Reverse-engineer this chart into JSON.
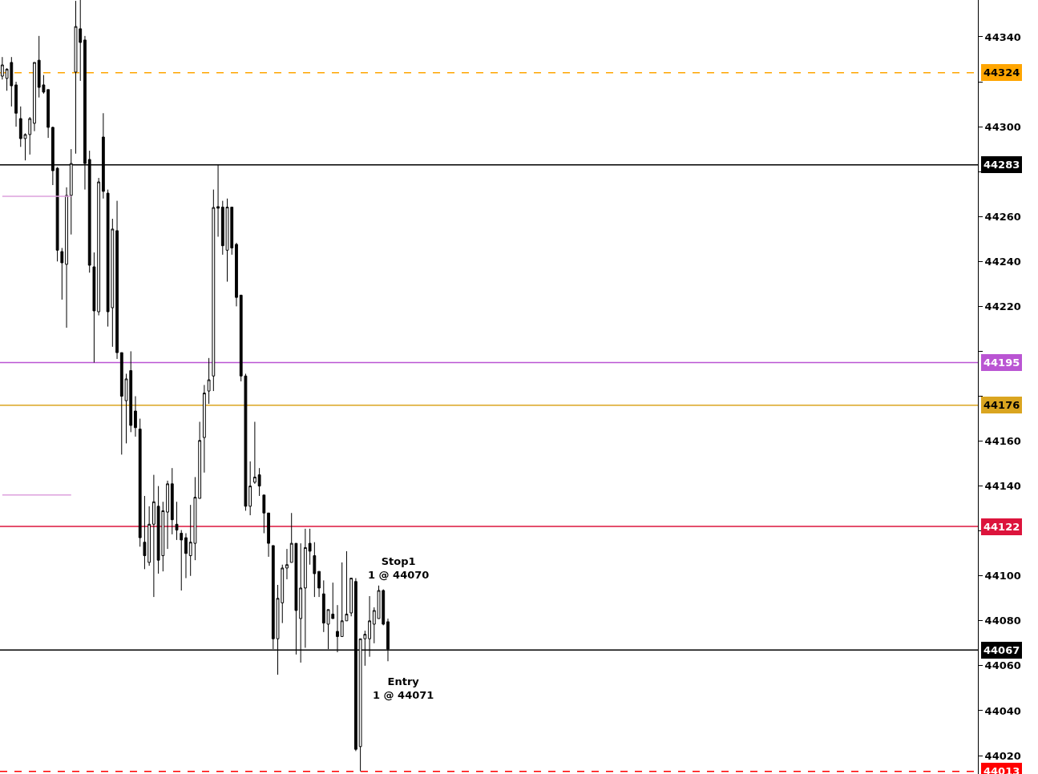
{
  "chart_data": {
    "type": "candlestick",
    "color": "#000000",
    "categories": [
      null,
      null,
      null,
      null,
      null,
      null,
      null,
      null,
      null,
      null,
      null,
      null,
      null,
      null,
      null,
      null,
      null,
      null,
      null,
      null,
      null,
      null,
      null,
      null,
      null,
      null,
      null,
      null,
      null,
      null,
      null,
      null,
      null,
      null,
      null,
      null,
      null,
      null,
      null,
      null,
      null,
      null,
      null,
      null,
      null,
      null,
      null,
      null,
      null,
      null,
      null,
      null,
      null,
      null,
      null,
      null,
      null,
      null,
      null,
      null,
      null,
      null,
      null,
      null,
      null,
      null,
      null,
      null,
      null,
      null,
      null,
      null,
      null,
      null,
      null,
      null,
      null,
      null,
      null,
      null,
      null,
      null,
      null,
      null,
      null,
      null,
      null,
      null,
      null,
      null,
      null,
      null,
      null,
      null,
      null,
      null,
      null,
      null,
      null,
      null,
      null,
      null,
      null,
      null,
      null,
      null,
      null,
      null,
      null,
      null,
      null,
      null,
      null,
      null,
      null,
      null,
      null,
      null,
      null,
      null,
      null,
      null,
      null,
      null,
      null,
      null,
      null,
      null,
      null,
      null,
      null,
      null,
      null,
      null,
      null,
      null,
      null,
      null,
      null,
      null,
      null,
      null,
      null,
      null,
      null,
      null,
      null,
      null,
      null,
      null,
      null,
      null,
      null,
      null,
      null,
      null,
      null,
      null,
      null,
      null,
      null,
      null,
      null,
      null,
      null,
      null,
      null,
      null,
      null,
      null,
      null,
      null,
      null,
      null,
      null,
      null,
      null,
      null,
      null,
      null,
      null,
      null,
      null,
      null,
      null,
      null,
      null,
      null,
      null,
      null,
      null,
      null,
      null,
      null,
      null,
      null,
      null,
      null,
      null,
      null,
      null,
      null,
      null,
      null,
      null,
      null,
      null,
      null,
      null,
      null,
      null,
      null,
      null
    ],
    "ohlc": [
      [
        44322.5,
        44331,
        44321,
        44327.5
      ],
      [
        44321.5,
        44326,
        44316,
        44325.6
      ],
      [
        44328.6,
        44331,
        44309,
        44318.2
      ],
      [
        44318.6,
        44320,
        44300,
        44306
      ],
      [
        44303.6,
        44309,
        44291,
        44294.7
      ],
      [
        44294.7,
        44297,
        44285,
        44296.5
      ],
      [
        44296.5,
        44304.3,
        44287.6,
        44303.6
      ],
      [
        44301.5,
        44328.6,
        44298,
        44328.6
      ],
      [
        44329.6,
        44340.4,
        44313,
        44317.5
      ],
      [
        44318.6,
        44323,
        44314.7,
        44315.4
      ],
      [
        44316.5,
        44316.5,
        44295,
        44299.7
      ],
      [
        44299.7,
        44300,
        44274,
        44280.4
      ],
      [
        44281.5,
        44282,
        44240,
        44245
      ],
      [
        44244.4,
        44246,
        44223,
        44239.4
      ],
      [
        44238.7,
        44273,
        44210.5,
        44269.4
      ],
      [
        44269.4,
        44290,
        44252,
        44283.6
      ],
      [
        44324.3,
        44356,
        44288,
        44344.6
      ],
      [
        44343.6,
        44356.4,
        44320.4,
        44337.5
      ],
      [
        44338.6,
        44340.4,
        44272,
        44283.6
      ],
      [
        44285.4,
        44289.3,
        44235,
        44238.3
      ],
      [
        44237.6,
        44244,
        44195,
        44218
      ],
      [
        44217.6,
        44277.2,
        44216,
        44275.4
      ],
      [
        44295.4,
        44306,
        44268,
        44271.2
      ],
      [
        44270.4,
        44272,
        44211,
        44217.6
      ],
      [
        44219.4,
        44259,
        44202,
        44254.4
      ],
      [
        44253.7,
        44267,
        44196.6,
        44199.4
      ],
      [
        44199.4,
        44199.4,
        44154,
        44180
      ],
      [
        44178,
        44190,
        44159,
        44187.7
      ],
      [
        44191.4,
        44200,
        44164,
        44167
      ],
      [
        44173.4,
        44180,
        44162,
        44166
      ],
      [
        44165.4,
        44170,
        44113,
        44117
      ],
      [
        44115,
        44135.6,
        44103,
        44109
      ],
      [
        44106,
        44131,
        44104.5,
        44123
      ],
      [
        44123,
        44145,
        44090.6,
        44133
      ],
      [
        44131,
        44140,
        44101,
        44107
      ],
      [
        44109,
        44133,
        44102,
        44129
      ],
      [
        44128.4,
        44142.4,
        44112,
        44141
      ],
      [
        44141,
        44148,
        44118.5,
        44125
      ],
      [
        44123,
        44133,
        44116,
        44120.4
      ],
      [
        44119,
        44120.4,
        44093.5,
        44116
      ],
      [
        44117,
        44119,
        44099,
        44110
      ],
      [
        44109,
        44131.6,
        44100,
        44115
      ],
      [
        44114.5,
        44144,
        44107,
        44135
      ],
      [
        44134.5,
        44168.6,
        44134.5,
        44160.3
      ],
      [
        44161.6,
        44185,
        44146,
        44181.4
      ],
      [
        44182.3,
        44197,
        44176.6,
        44187.3
      ],
      [
        44189,
        44272,
        44182.3,
        44264
      ],
      [
        44264.4,
        44283,
        44251,
        44263.7
      ],
      [
        44264.2,
        44267,
        44243,
        44247
      ],
      [
        44245,
        44268,
        44231,
        44264.2
      ],
      [
        44264.2,
        44264.2,
        44243,
        44246
      ],
      [
        44247.6,
        44248.3,
        44220,
        44224
      ],
      [
        44225,
        44225,
        44186.6,
        44189
      ],
      [
        44189,
        44190,
        44129,
        44131
      ],
      [
        44131,
        44151,
        44127,
        44140
      ],
      [
        44141.7,
        44168.6,
        44141,
        44144
      ],
      [
        44145,
        44148,
        44135.6,
        44140
      ],
      [
        44136,
        44136,
        44119,
        44128
      ],
      [
        44128,
        44128,
        44108.5,
        44114.5
      ],
      [
        44113.5,
        44113.5,
        44067.4,
        44072
      ],
      [
        44072,
        44096,
        44056,
        44090
      ],
      [
        44088,
        44105,
        44079,
        44103.5
      ],
      [
        44103.5,
        44112,
        44098.5,
        44105
      ],
      [
        44106,
        44128,
        44106,
        44114.5
      ],
      [
        44114.5,
        44114.5,
        44065,
        44084.6
      ],
      [
        44081,
        44114.5,
        44061.4,
        44094.6
      ],
      [
        44094.6,
        44121,
        44068,
        44112.6
      ],
      [
        44114.5,
        44121,
        44105,
        44111
      ],
      [
        44109,
        44115,
        44090.6,
        44101
      ],
      [
        44102,
        44102,
        44090.6,
        44094.6
      ],
      [
        44092,
        44098,
        44075,
        44079
      ],
      [
        44078.5,
        44085,
        44067.4,
        44085
      ],
      [
        44083,
        44097,
        44081,
        44081
      ],
      [
        44075.3,
        44087,
        44066,
        44073
      ],
      [
        44073,
        44106,
        44073,
        44080
      ],
      [
        44080,
        44111,
        44080,
        44083
      ],
      [
        44083.5,
        44099,
        44082,
        44099
      ],
      [
        44097.5,
        44099,
        44022,
        44022.8
      ],
      [
        44024,
        44072,
        44013,
        44072
      ],
      [
        44072,
        44075.6,
        44060,
        44074
      ],
      [
        44072,
        44091,
        44064,
        44080
      ],
      [
        44078.5,
        44086,
        44070,
        44084.6
      ],
      [
        44081,
        44095.7,
        44081,
        44093.5
      ],
      [
        44093.5,
        44094,
        44078,
        44078.5
      ],
      [
        44079.6,
        44081,
        44062,
        44067.4
      ],
      null,
      null,
      null,
      null,
      null,
      null,
      null,
      null,
      null,
      null,
      null,
      null,
      null,
      null,
      null,
      null,
      null,
      null,
      null,
      null,
      null,
      null,
      null,
      null,
      null,
      null,
      null,
      null,
      null,
      null,
      null,
      null,
      null,
      null,
      null,
      null,
      null,
      null,
      null,
      null,
      null,
      null,
      null,
      null,
      null,
      null,
      null,
      null,
      null,
      null,
      null,
      null,
      null,
      null,
      null,
      null,
      null,
      null,
      null,
      null,
      null,
      null,
      null,
      null,
      null,
      null,
      null,
      null,
      null,
      null,
      null,
      null,
      null,
      null,
      null,
      null,
      null,
      null,
      null,
      null,
      null,
      null,
      null,
      null,
      null,
      null,
      null,
      null,
      null,
      null,
      null,
      null,
      null,
      null,
      null,
      null,
      null,
      null,
      null,
      null,
      null,
      null,
      null,
      null,
      null,
      null,
      null,
      null,
      null,
      null,
      null,
      null,
      null,
      null,
      null,
      null,
      null,
      null,
      null,
      null,
      null,
      null,
      null,
      null,
      null,
      null,
      null,
      null
    ],
    "series": [
      {
        "type": "line",
        "color": "#dda0dd",
        "values": [
          44269,
          44269,
          44269,
          44269,
          44269,
          44269,
          44269,
          44269,
          44269,
          44269,
          44269,
          44269,
          44269,
          44269,
          44269,
          44269,
          null,
          null,
          null,
          null,
          null,
          null,
          null,
          null,
          null,
          null,
          null,
          null,
          null,
          null,
          null,
          null,
          null,
          null,
          null,
          null,
          null,
          null,
          null,
          null,
          null,
          null,
          null,
          null,
          null,
          null,
          null,
          null,
          null,
          null,
          null,
          null,
          null,
          null,
          null,
          null,
          null,
          null,
          null,
          null,
          null,
          null,
          null,
          null,
          null,
          null,
          null,
          null,
          null,
          null,
          null,
          null,
          null,
          null,
          null,
          null,
          null,
          null,
          null,
          null,
          null,
          null,
          null,
          null,
          null,
          null,
          null,
          null,
          null,
          null,
          null,
          null,
          null,
          null,
          null,
          null,
          null,
          null,
          null,
          null,
          null,
          null,
          null,
          null,
          null,
          null,
          null,
          null,
          null,
          null,
          null,
          null,
          null,
          null,
          null,
          null,
          null,
          null,
          null,
          null,
          null,
          null,
          null,
          null,
          null,
          null,
          null,
          null,
          null,
          null,
          null,
          null,
          null,
          null,
          null,
          null,
          null,
          null,
          null,
          null,
          null,
          null,
          null,
          null,
          null,
          null,
          null,
          null,
          null,
          null,
          null,
          null,
          null,
          null,
          null,
          null,
          null,
          null,
          null,
          null,
          null,
          null,
          null,
          null,
          null,
          null,
          null,
          null,
          null,
          null,
          null,
          null,
          null,
          null,
          null,
          null,
          null,
          null,
          null,
          null,
          null,
          null,
          null,
          null,
          null,
          null,
          null,
          null,
          null,
          null,
          null,
          null,
          null,
          null,
          null,
          null,
          null,
          null,
          null,
          null,
          null,
          null,
          null,
          null,
          null,
          null,
          null,
          null,
          null,
          null,
          null,
          null,
          null
        ]
      },
      {
        "type": "line",
        "color": "#dda0dd",
        "values": [
          44136,
          44136,
          44136,
          44136,
          44136,
          44136,
          44136,
          44136,
          44136,
          44136,
          44136,
          44136,
          44136,
          44136,
          44136,
          44136,
          null,
          null,
          null,
          null,
          null,
          null,
          null,
          null,
          null,
          null,
          null,
          null,
          null,
          null,
          null,
          null,
          null,
          null,
          null,
          null,
          null,
          null,
          null,
          null,
          null,
          null,
          null,
          null,
          null,
          null,
          null,
          null,
          null,
          null,
          null,
          null,
          null,
          null,
          null,
          null,
          null,
          null,
          null,
          null,
          null,
          null,
          null,
          null,
          null,
          null,
          null,
          null,
          null,
          null,
          null,
          null,
          null,
          null,
          null,
          null,
          null,
          null,
          null,
          null,
          null,
          null,
          null,
          null,
          null,
          null,
          null,
          null,
          null,
          null,
          null,
          null,
          null,
          null,
          null,
          null,
          null,
          null,
          null,
          null,
          null,
          null,
          null,
          null,
          null,
          null,
          null,
          null,
          null,
          null,
          null,
          null,
          null,
          null,
          null,
          null,
          null,
          null,
          null,
          null,
          null,
          null,
          null,
          null,
          null,
          null,
          null,
          null,
          null,
          null,
          null,
          null,
          null,
          null,
          null,
          null,
          null,
          null,
          null,
          null,
          null,
          null,
          null,
          null,
          null,
          null,
          null,
          null,
          null,
          null,
          null,
          null,
          null,
          null,
          null,
          null,
          null,
          null,
          null,
          null,
          null,
          null,
          null,
          null,
          null,
          null,
          null,
          null,
          null,
          null,
          null,
          null,
          null,
          null,
          null,
          null,
          null,
          null,
          null,
          null,
          null,
          null,
          null,
          null,
          null,
          null,
          null,
          null,
          null,
          null,
          null,
          null,
          null,
          null,
          null,
          null,
          null,
          null,
          null,
          null,
          null,
          null,
          null,
          null,
          null,
          null,
          null,
          null,
          null,
          null,
          null,
          null,
          null
        ]
      }
    ],
    "ref_lines": [
      {
        "axis": "y",
        "value": 44324,
        "label": "44324",
        "color": "#ffa500",
        "line_style": "dashed"
      },
      {
        "axis": "y",
        "value": 44283,
        "label": "44283",
        "color": "#000000",
        "line_style": "solid"
      },
      {
        "axis": "y",
        "value": 44195,
        "label": "44195",
        "color": "#ba55d3",
        "line_style": "solid"
      },
      {
        "axis": "y",
        "value": 44176,
        "label": "44176",
        "color": "#daa520",
        "line_style": "solid"
      },
      {
        "axis": "y",
        "value": 44122,
        "label": "44122",
        "color": "#dc143c",
        "line_style": "solid"
      },
      {
        "axis": "y",
        "value": 44067,
        "label": "44067",
        "color": "#000000",
        "line_style": "solid"
      },
      {
        "axis": "y",
        "value": 44013,
        "label": "44013",
        "color": "#ff0000",
        "line_style": "dashed"
      }
    ],
    "annotations": [
      "Entry\n1 @ 44071",
      "Stop1\n1 @ 44070"
    ],
    "ylim": [
      44011.8,
      44356.4
    ],
    "yticks": [
      44020,
      44040,
      44060,
      44080,
      44100,
      {
        "value": 44120,
        "label": null
      },
      44140,
      44160,
      {
        "value": 44180,
        "label": null
      },
      {
        "value": 44200,
        "label": null
      },
      44220,
      44240,
      44260,
      {
        "value": 44280,
        "label": null
      },
      44300,
      {
        "value": 44320,
        "label": null
      },
      44340
    ],
    "tick_labels": "y"
  }
}
